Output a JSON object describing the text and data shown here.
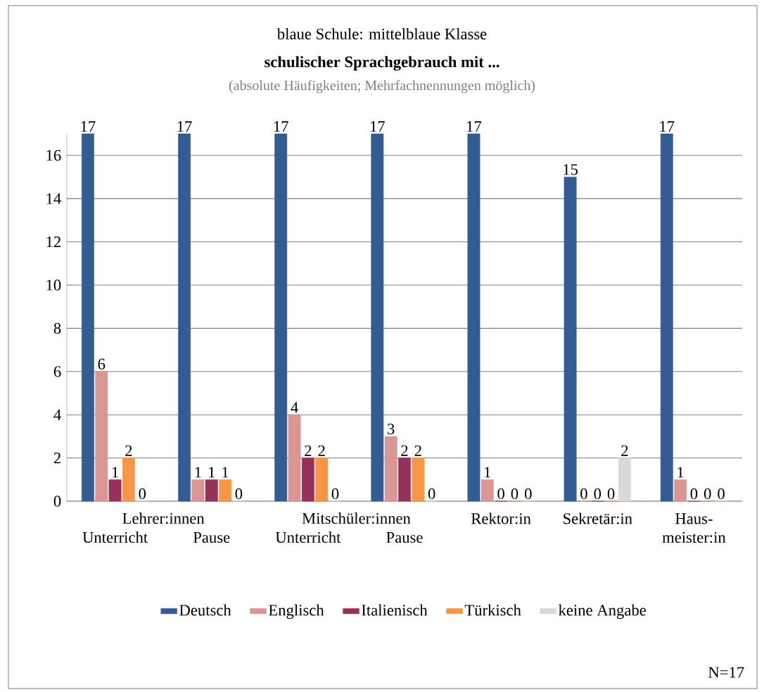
{
  "chart_data": {
    "type": "bar",
    "title": "blaue Schule: mittelblaue Klasse",
    "subtitle": "schulischer Sprachgebrauch mit ...",
    "annotations": [
      "(absolute Häufigkeiten; Mehrfachnennungen  möglich)",
      "Lehrer:innen",
      "Mitschüler:innen",
      "N=17"
    ],
    "categories": [
      "Unterricht",
      "Pause",
      "Unterricht",
      "Pause",
      "Rektor:in",
      "Sekretär:in",
      "Haus-meister:in"
    ],
    "series": [
      {
        "name": "Deutsch",
        "color": "#335d92",
        "values": [
          17,
          17,
          17,
          17,
          17,
          15,
          17
        ]
      },
      {
        "name": "Englisch",
        "color": "#d99694",
        "values": [
          6,
          1,
          4,
          3,
          1,
          0,
          1
        ]
      },
      {
        "name": "Italienisch",
        "color": "#953259",
        "values": [
          1,
          1,
          2,
          2,
          0,
          0,
          0
        ]
      },
      {
        "name": "Türkisch",
        "color": "#f79646",
        "values": [
          2,
          1,
          2,
          2,
          0,
          0,
          0
        ]
      },
      {
        "name": "keine Angabe",
        "color": "#d9d9d9",
        "values": [
          0,
          0,
          0,
          0,
          0,
          2,
          0
        ]
      }
    ],
    "ylim": [
      0,
      17
    ],
    "yticks": [
      0,
      2,
      4,
      6,
      8,
      10,
      12,
      14,
      16
    ],
    "grid": "y",
    "legend": "bottom",
    "data_labels": true
  }
}
